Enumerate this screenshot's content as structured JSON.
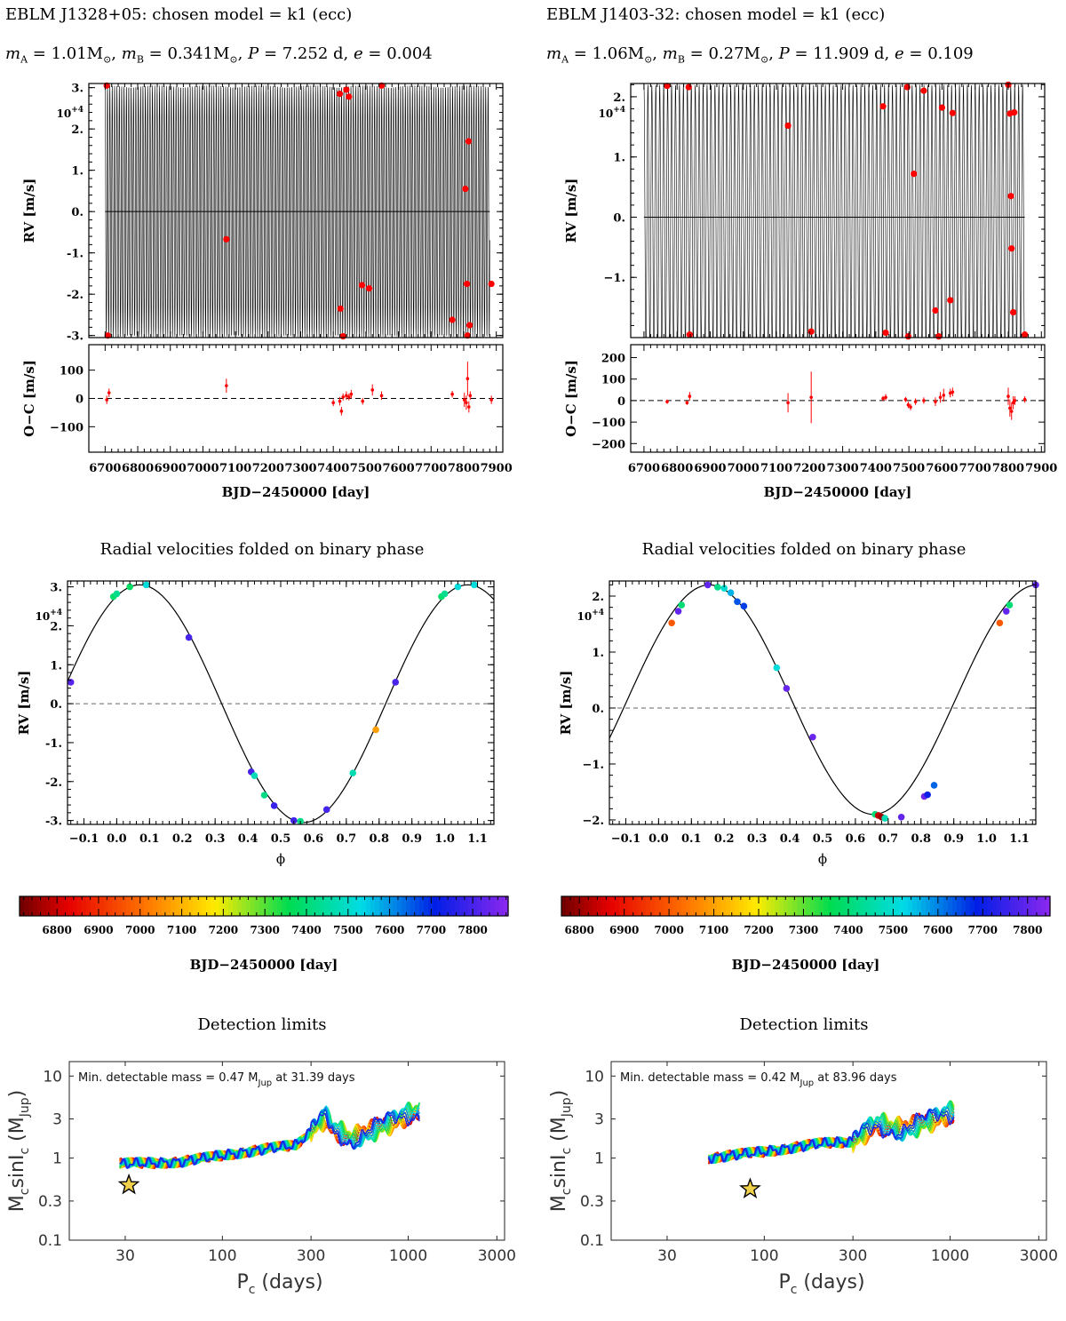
{
  "figure": {
    "section_folded_title": "Radial velocities folded on binary phase",
    "section_detection_title": "Detection limits"
  },
  "panels": [
    {
      "id": "left",
      "header": "EBLM J1328+05: chosen model = k1 (ecc)",
      "params": {
        "mA_label": "m",
        "mA_sub": "A",
        "mA_value": "= 1.01M",
        "mB_label": "m",
        "mB_sub": "B",
        "mB_value": "= 0.341M",
        "P_label": "P",
        "P_value": "= 7.252 d,",
        "e_label": "e",
        "e_value": "= 0.004"
      }
    },
    {
      "id": "right",
      "header": "EBLM J1403-32: chosen model = k1 (ecc)",
      "params": {
        "mA_label": "m",
        "mA_sub": "A",
        "mA_value": "= 1.06M",
        "mB_label": "m",
        "mB_sub": "B",
        "mB_value": "= 0.27M",
        "P_label": "P",
        "P_value": "= 11.909 d,",
        "e_label": "e",
        "e_value": "= 0.109"
      }
    }
  ],
  "chart_data": [
    {
      "id": "rv_time_left",
      "type": "line",
      "xlabel": "BJD−2450000 [day]",
      "ylabel": "RV [m/s]",
      "exponent_label": "10+4",
      "xlim": [
        6650,
        7920
      ],
      "ylim": [
        -3.05,
        3.1
      ],
      "x_ticks": [
        6700,
        6800,
        6900,
        7000,
        7100,
        7200,
        7300,
        7400,
        7500,
        7600,
        7700,
        7800,
        7900
      ],
      "y_ticks": [
        3.0,
        2.0,
        1.0,
        0.0,
        -1.0,
        -2.0,
        -3.0
      ],
      "y_tick_labels": [
        "3.",
        "2.",
        "1.",
        "0.",
        "-1.",
        "-2.",
        "-3."
      ],
      "model": {
        "K": 3.05,
        "period": 7.252,
        "t_start": 6700,
        "t_end": 7880
      },
      "points": [
        {
          "x": 6705,
          "y": 3.05
        },
        {
          "x": 6708,
          "y": -3.0
        },
        {
          "x": 7072,
          "y": -0.67
        },
        {
          "x": 7420,
          "y": 2.85
        },
        {
          "x": 7422,
          "y": -2.35
        },
        {
          "x": 7430,
          "y": -3.02
        },
        {
          "x": 7440,
          "y": 2.95
        },
        {
          "x": 7448,
          "y": 2.78
        },
        {
          "x": 7488,
          "y": -1.78
        },
        {
          "x": 7510,
          "y": -1.86
        },
        {
          "x": 7548,
          "y": 3.05
        },
        {
          "x": 7765,
          "y": -2.62
        },
        {
          "x": 7805,
          "y": 0.55
        },
        {
          "x": 7810,
          "y": -1.75
        },
        {
          "x": 7812,
          "y": -3.0
        },
        {
          "x": 7815,
          "y": 1.7
        },
        {
          "x": 7818,
          "y": -2.75
        },
        {
          "x": 7885,
          "y": -1.75
        }
      ]
    },
    {
      "id": "oc_left",
      "type": "scatter",
      "ylabel": "O−C [m/s]",
      "xlim": [
        6650,
        7920
      ],
      "ylim": [
        -190,
        190
      ],
      "y_ticks": [
        100,
        0,
        -100
      ],
      "y_tick_labels": [
        "100",
        "0",
        "−100"
      ],
      "points": [
        {
          "x": 6705,
          "y": -5,
          "err": 15
        },
        {
          "x": 6712,
          "y": 20,
          "err": 15
        },
        {
          "x": 7072,
          "y": 45,
          "err": 25
        },
        {
          "x": 7400,
          "y": -15,
          "err": 12
        },
        {
          "x": 7420,
          "y": -10,
          "err": 15
        },
        {
          "x": 7425,
          "y": -45,
          "err": 15
        },
        {
          "x": 7430,
          "y": 5,
          "err": 12
        },
        {
          "x": 7440,
          "y": 10,
          "err": 15
        },
        {
          "x": 7448,
          "y": 5,
          "err": 12
        },
        {
          "x": 7455,
          "y": 15,
          "err": 15
        },
        {
          "x": 7490,
          "y": -10,
          "err": 12
        },
        {
          "x": 7520,
          "y": 30,
          "err": 20
        },
        {
          "x": 7548,
          "y": 10,
          "err": 15
        },
        {
          "x": 7765,
          "y": 15,
          "err": 12
        },
        {
          "x": 7802,
          "y": -5,
          "err": 25
        },
        {
          "x": 7808,
          "y": -15,
          "err": 25
        },
        {
          "x": 7812,
          "y": 70,
          "err": 60
        },
        {
          "x": 7816,
          "y": -30,
          "err": 20
        },
        {
          "x": 7820,
          "y": 10,
          "err": 15
        },
        {
          "x": 7885,
          "y": -5,
          "err": 15
        }
      ]
    },
    {
      "id": "rv_time_right",
      "type": "line",
      "xlabel": "BJD−2450000 [day]",
      "ylabel": "RV [m/s]",
      "exponent_label": "10+4",
      "xlim": [
        6660,
        7910
      ],
      "ylim": [
        -2.0,
        2.22
      ],
      "x_ticks": [
        6700,
        6800,
        6900,
        7000,
        7100,
        7200,
        7300,
        7400,
        7500,
        7600,
        7700,
        7800,
        7900
      ],
      "y_ticks": [
        2.0,
        1.0,
        0.0,
        -1.0
      ],
      "y_tick_labels": [
        "2.",
        "1.",
        "0.",
        "−1."
      ],
      "model": {
        "K": 2.2,
        "period": 11.909,
        "t_start": 6700,
        "t_end": 7850
      },
      "points": [
        {
          "x": 6770,
          "y": 2.18
        },
        {
          "x": 6835,
          "y": 2.16
        },
        {
          "x": 6838,
          "y": -1.95
        },
        {
          "x": 7135,
          "y": 1.52
        },
        {
          "x": 7205,
          "y": -1.9
        },
        {
          "x": 7422,
          "y": 1.84
        },
        {
          "x": 7430,
          "y": -1.92
        },
        {
          "x": 7495,
          "y": 2.16
        },
        {
          "x": 7498,
          "y": -1.98
        },
        {
          "x": 7515,
          "y": 0.72
        },
        {
          "x": 7545,
          "y": 2.1
        },
        {
          "x": 7580,
          "y": -1.55
        },
        {
          "x": 7590,
          "y": -1.98
        },
        {
          "x": 7600,
          "y": 1.82
        },
        {
          "x": 7625,
          "y": -1.38
        },
        {
          "x": 7632,
          "y": 1.73
        },
        {
          "x": 7800,
          "y": 2.2
        },
        {
          "x": 7805,
          "y": 1.72
        },
        {
          "x": 7808,
          "y": 0.35
        },
        {
          "x": 7810,
          "y": -0.52
        },
        {
          "x": 7815,
          "y": -1.58
        },
        {
          "x": 7818,
          "y": 1.74
        },
        {
          "x": 7850,
          "y": -1.95
        }
      ]
    },
    {
      "id": "oc_right",
      "type": "scatter",
      "ylabel": "O−C [m/s]",
      "xlim": [
        6660,
        7910
      ],
      "ylim": [
        -240,
        260
      ],
      "y_ticks": [
        200,
        100,
        0,
        -100,
        -200
      ],
      "y_tick_labels": [
        "200",
        "100",
        "0",
        "−100",
        "−200"
      ],
      "points": [
        {
          "x": 6770,
          "y": -5,
          "err": 10
        },
        {
          "x": 6830,
          "y": -10,
          "err": 10
        },
        {
          "x": 6838,
          "y": 20,
          "err": 20
        },
        {
          "x": 7135,
          "y": -10,
          "err": 45
        },
        {
          "x": 7205,
          "y": 15,
          "err": 120
        },
        {
          "x": 7422,
          "y": 10,
          "err": 12
        },
        {
          "x": 7430,
          "y": 15,
          "err": 15
        },
        {
          "x": 7490,
          "y": 5,
          "err": 12
        },
        {
          "x": 7498,
          "y": -20,
          "err": 15
        },
        {
          "x": 7505,
          "y": -30,
          "err": 15
        },
        {
          "x": 7520,
          "y": -5,
          "err": 15
        },
        {
          "x": 7545,
          "y": 0,
          "err": 15
        },
        {
          "x": 7580,
          "y": -5,
          "err": 20
        },
        {
          "x": 7595,
          "y": 15,
          "err": 25
        },
        {
          "x": 7605,
          "y": 25,
          "err": 30
        },
        {
          "x": 7625,
          "y": 35,
          "err": 20
        },
        {
          "x": 7632,
          "y": 40,
          "err": 20
        },
        {
          "x": 7800,
          "y": 20,
          "err": 40
        },
        {
          "x": 7805,
          "y": -35,
          "err": 40
        },
        {
          "x": 7810,
          "y": -50,
          "err": 40
        },
        {
          "x": 7815,
          "y": -10,
          "err": 30
        },
        {
          "x": 7820,
          "y": 0,
          "err": 20
        },
        {
          "x": 7850,
          "y": 5,
          "err": 15
        }
      ]
    },
    {
      "id": "phase_left",
      "type": "scatter",
      "title": "Radial velocities folded on binary phase",
      "xlabel": "ϕ",
      "ylabel": "RV [m/s]",
      "exponent_label": "10+4",
      "xlim": [
        -0.15,
        1.15
      ],
      "ylim": [
        -3.1,
        3.15
      ],
      "x_ticks": [
        -0.1,
        0.0,
        0.1,
        0.2,
        0.3,
        0.4,
        0.5,
        0.6,
        0.7,
        0.8,
        0.9,
        1.0,
        1.1
      ],
      "x_tick_labels": [
        "−0.1",
        "0.0",
        "0.1",
        "0.2",
        "0.3",
        "0.4",
        "0.5",
        "0.6",
        "0.7",
        "0.8",
        "0.9",
        "1.0",
        "1.1"
      ],
      "y_ticks": [
        3.0,
        2.0,
        1.0,
        0.0,
        -1.0,
        -2.0,
        -3.0
      ],
      "y_tick_labels": [
        "3.",
        "2.",
        "1.",
        "0.",
        "-1.",
        "-2.",
        "-3."
      ],
      "model": {
        "K": 3.05,
        "phase_of_max": 0.07
      },
      "points": [
        {
          "x": -0.14,
          "y": 0.55,
          "t": 7820
        },
        {
          "x": -0.01,
          "y": 2.75,
          "t": 7390
        },
        {
          "x": 0.0,
          "y": 2.82,
          "t": 7430
        },
        {
          "x": 0.04,
          "y": 3.0,
          "t": 7380
        },
        {
          "x": 0.09,
          "y": 3.05,
          "t": 7520
        },
        {
          "x": 0.22,
          "y": 1.7,
          "t": 7800
        },
        {
          "x": 0.41,
          "y": -1.75,
          "t": 7800
        },
        {
          "x": 0.42,
          "y": -1.85,
          "t": 7480
        },
        {
          "x": 0.45,
          "y": -2.35,
          "t": 7420
        },
        {
          "x": 0.48,
          "y": -2.62,
          "t": 7780
        },
        {
          "x": 0.54,
          "y": -3.0,
          "t": 7790
        },
        {
          "x": 0.56,
          "y": -3.02,
          "t": 7420
        },
        {
          "x": 0.64,
          "y": -2.72,
          "t": 7800
        },
        {
          "x": 0.72,
          "y": -1.78,
          "t": 7470
        },
        {
          "x": 0.79,
          "y": -0.67,
          "t": 7072
        },
        {
          "x": 0.85,
          "y": 0.55,
          "t": 7805
        },
        {
          "x": 0.99,
          "y": 2.75,
          "t": 7390
        },
        {
          "x": 1.0,
          "y": 2.82,
          "t": 7430
        },
        {
          "x": 1.04,
          "y": 3.0,
          "t": 7520
        },
        {
          "x": 1.09,
          "y": 3.05,
          "t": 7520
        }
      ]
    },
    {
      "id": "phase_right",
      "type": "scatter",
      "title": "Radial velocities folded on binary phase",
      "xlabel": "ϕ",
      "ylabel": "RV [m/s]",
      "exponent_label": "10+4",
      "xlim": [
        -0.15,
        1.15
      ],
      "ylim": [
        -2.08,
        2.27
      ],
      "x_ticks": [
        -0.1,
        0.0,
        0.1,
        0.2,
        0.3,
        0.4,
        0.5,
        0.6,
        0.7,
        0.8,
        0.9,
        1.0,
        1.1
      ],
      "x_tick_labels": [
        "−0.1",
        "0.0",
        "0.1",
        "0.2",
        "0.3",
        "0.4",
        "0.5",
        "0.6",
        "0.7",
        "0.8",
        "0.9",
        "1.0",
        "1.1"
      ],
      "y_ticks": [
        2.0,
        1.0,
        0.0,
        -1.0,
        -2.0
      ],
      "y_tick_labels": [
        "2.",
        "1.",
        "0.",
        "−1.",
        "−2."
      ],
      "model": {
        "K": 2.05,
        "offset": 0.15,
        "phase_of_max": 0.155
      },
      "points": [
        {
          "x": 0.04,
          "y": 1.52,
          "t": 7000
        },
        {
          "x": 0.06,
          "y": 1.73,
          "t": 7800
        },
        {
          "x": 0.07,
          "y": 1.84,
          "t": 7400
        },
        {
          "x": 0.15,
          "y": 2.2,
          "t": 7800
        },
        {
          "x": 0.18,
          "y": 2.16,
          "t": 7420
        },
        {
          "x": 0.2,
          "y": 2.14,
          "t": 7500
        },
        {
          "x": 0.22,
          "y": 2.06,
          "t": 7560
        },
        {
          "x": 0.24,
          "y": 1.9,
          "t": 7640
        },
        {
          "x": 0.26,
          "y": 1.82,
          "t": 7660
        },
        {
          "x": 0.36,
          "y": 0.72,
          "t": 7510
        },
        {
          "x": 0.39,
          "y": 0.35,
          "t": 7808
        },
        {
          "x": 0.47,
          "y": -0.52,
          "t": 7810
        },
        {
          "x": 0.66,
          "y": -1.9,
          "t": 7400
        },
        {
          "x": 0.67,
          "y": -1.92,
          "t": 6840
        },
        {
          "x": 0.68,
          "y": -1.95,
          "t": 6800
        },
        {
          "x": 0.69,
          "y": -1.97,
          "t": 7470
        },
        {
          "x": 0.74,
          "y": -1.95,
          "t": 7800
        },
        {
          "x": 0.81,
          "y": -1.58,
          "t": 7815
        },
        {
          "x": 0.82,
          "y": -1.55,
          "t": 7700
        },
        {
          "x": 0.84,
          "y": -1.38,
          "t": 7625
        },
        {
          "x": 1.04,
          "y": 1.52,
          "t": 7000
        },
        {
          "x": 1.06,
          "y": 1.73,
          "t": 7800
        },
        {
          "x": 1.07,
          "y": 1.84,
          "t": 7400
        },
        {
          "x": 1.15,
          "y": 2.2,
          "t": 7800
        }
      ]
    },
    {
      "id": "colorbar_left",
      "type": "heatmap",
      "xlabel": "BJD−2450000 [day]",
      "range": [
        6710,
        7885
      ],
      "ticks": [
        6800,
        6900,
        7000,
        7100,
        7200,
        7300,
        7400,
        7500,
        7600,
        7700,
        7800
      ],
      "colormap": "rainbow dark-red → violet"
    },
    {
      "id": "colorbar_right",
      "type": "heatmap",
      "xlabel": "BJD−2450000 [day]",
      "range": [
        6760,
        7850
      ],
      "ticks": [
        6800,
        6900,
        7000,
        7100,
        7200,
        7300,
        7400,
        7500,
        7600,
        7700,
        7800
      ],
      "colormap": "rainbow dark-red → violet"
    },
    {
      "id": "detection_left",
      "type": "line",
      "title": "Detection limits",
      "xlabel_main": "P",
      "xlabel_sub": "c",
      "xlabel_tail": " (days)",
      "ylabel_main": "M",
      "ylabel_sub": "c",
      "ylabel_mid": "sinI",
      "ylabel_sub2": "c",
      "ylabel_tail_open": " (M",
      "ylabel_sub3": "Jup",
      "ylabel_tail_close": ")",
      "annotation_pre": "Min. detectable mass = 0.47 M",
      "annotation_sub": "Jup",
      "annotation_post": " at 31.39 days",
      "xlim": [
        15,
        3300
      ],
      "ylim": [
        0.1,
        15
      ],
      "x_ticks": [
        30,
        100,
        300,
        1000,
        3000
      ],
      "x_tick_labels": [
        "30",
        "100",
        "300",
        "1000",
        "3000"
      ],
      "y_ticks": [
        0.1,
        0.3,
        1,
        3,
        10
      ],
      "y_tick_labels": [
        "0.1",
        "0.3",
        "1",
        "3",
        "10"
      ],
      "min_mass": 0.47,
      "min_period": 31.39,
      "curve_range": [
        28,
        1150
      ],
      "curve_count": 14,
      "anchors": [
        [
          28,
          0.85
        ],
        [
          60,
          0.9
        ],
        [
          120,
          1.15
        ],
        [
          250,
          1.45
        ],
        [
          360,
          3.2
        ],
        [
          400,
          2.2
        ],
        [
          500,
          1.7
        ],
        [
          700,
          2.4
        ],
        [
          1150,
          3.8
        ]
      ]
    },
    {
      "id": "detection_right",
      "type": "line",
      "title": "Detection limits",
      "xlabel_main": "P",
      "xlabel_sub": "c",
      "xlabel_tail": " (days)",
      "ylabel_main": "M",
      "ylabel_sub": "c",
      "ylabel_mid": "sinI",
      "ylabel_sub2": "c",
      "ylabel_tail_open": " (M",
      "ylabel_sub3": "Jup",
      "ylabel_tail_close": ")",
      "annotation_pre": "Min. detectable mass = 0.42 M",
      "annotation_sub": "Jup",
      "annotation_post": " at 83.96 days",
      "xlim": [
        15,
        3300
      ],
      "ylim": [
        0.1,
        15
      ],
      "x_ticks": [
        30,
        100,
        300,
        1000,
        3000
      ],
      "x_tick_labels": [
        "30",
        "100",
        "300",
        "1000",
        "3000"
      ],
      "y_ticks": [
        0.1,
        0.3,
        1,
        3,
        10
      ],
      "y_tick_labels": [
        "0.1",
        "0.3",
        "1",
        "3",
        "10"
      ],
      "min_mass": 0.42,
      "min_period": 83.96,
      "curve_range": [
        50,
        1050
      ],
      "curve_count": 14,
      "anchors": [
        [
          50,
          1.0
        ],
        [
          100,
          1.2
        ],
        [
          200,
          1.5
        ],
        [
          300,
          1.6
        ],
        [
          400,
          2.6
        ],
        [
          550,
          2.2
        ],
        [
          750,
          2.8
        ],
        [
          1050,
          3.6
        ]
      ]
    }
  ]
}
